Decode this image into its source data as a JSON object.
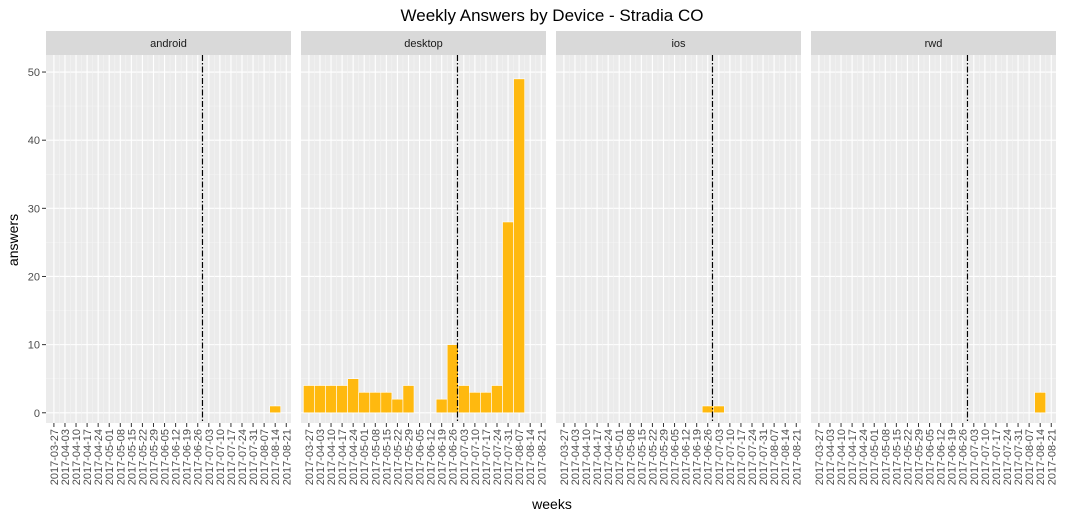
{
  "chart_data": {
    "type": "bar",
    "title": "Weekly Answers by Device - Stradia CO",
    "xlabel": "weeks",
    "ylabel": "answers",
    "ylim": [
      -1.5,
      52.5
    ],
    "yticks": [
      0,
      10,
      20,
      30,
      40,
      50
    ],
    "grid": true,
    "bar_color": "#FFB90F",
    "reference_line": {
      "x": "2017-06-29",
      "style": "dashdot",
      "color": "#000000"
    },
    "x_ticks": [
      "2017-03-27",
      "2017-04-03",
      "2017-04-10",
      "2017-04-17",
      "2017-04-24",
      "2017-05-01",
      "2017-05-08",
      "2017-05-15",
      "2017-05-22",
      "2017-05-29",
      "2017-06-05",
      "2017-06-12",
      "2017-06-19",
      "2017-06-26",
      "2017-07-03",
      "2017-07-10",
      "2017-07-17",
      "2017-07-24",
      "2017-07-31",
      "2017-08-07",
      "2017-08-14",
      "2017-08-21"
    ],
    "panels": [
      {
        "name": "android",
        "bars": [
          {
            "week": "2017-08-14",
            "value": 1
          }
        ]
      },
      {
        "name": "desktop",
        "bars": [
          {
            "week": "2017-03-27",
            "value": 4
          },
          {
            "week": "2017-04-03",
            "value": 4
          },
          {
            "week": "2017-04-10",
            "value": 4
          },
          {
            "week": "2017-04-17",
            "value": 4
          },
          {
            "week": "2017-04-24",
            "value": 5
          },
          {
            "week": "2017-05-01",
            "value": 3
          },
          {
            "week": "2017-05-08",
            "value": 3
          },
          {
            "week": "2017-05-15",
            "value": 3
          },
          {
            "week": "2017-05-22",
            "value": 2
          },
          {
            "week": "2017-05-29",
            "value": 4
          },
          {
            "week": "2017-06-19",
            "value": 2
          },
          {
            "week": "2017-06-26",
            "value": 10
          },
          {
            "week": "2017-07-03",
            "value": 4
          },
          {
            "week": "2017-07-10",
            "value": 3
          },
          {
            "week": "2017-07-17",
            "value": 3
          },
          {
            "week": "2017-07-24",
            "value": 4
          },
          {
            "week": "2017-07-31",
            "value": 28
          },
          {
            "week": "2017-08-07",
            "value": 49
          }
        ]
      },
      {
        "name": "ios",
        "bars": [
          {
            "week": "2017-06-26",
            "value": 1
          },
          {
            "week": "2017-07-03",
            "value": 1
          }
        ]
      },
      {
        "name": "rwd",
        "bars": [
          {
            "week": "2017-08-14",
            "value": 3
          }
        ]
      }
    ]
  }
}
